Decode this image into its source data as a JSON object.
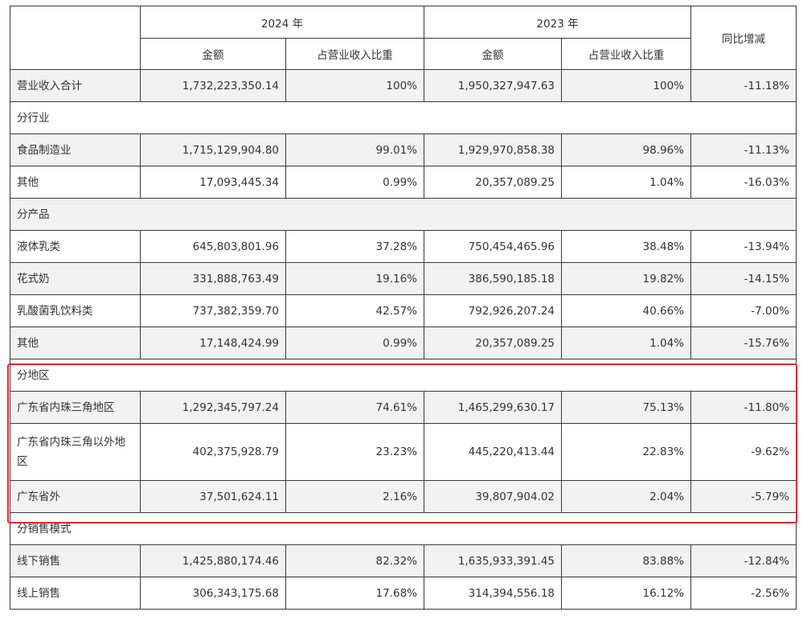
{
  "header": {
    "year_2024": "2024 年",
    "year_2023": "2023 年",
    "amount": "金额",
    "share": "占营业收入比重",
    "yoy": "同比增减"
  },
  "rows": {
    "total": {
      "label": "营业收入合计",
      "a2024": "1,732,223,350.14",
      "p2024": "100%",
      "a2023": "1,950,327,947.63",
      "p2023": "100%",
      "yoy": "-11.18%"
    },
    "sec_industry": {
      "label": "分行业"
    },
    "food": {
      "label": "食品制造业",
      "a2024": "1,715,129,904.80",
      "p2024": "99.01%",
      "a2023": "1,929,970,858.38",
      "p2023": "98.96%",
      "yoy": "-11.13%"
    },
    "other1": {
      "label": "其他",
      "a2024": "17,093,445.34",
      "p2024": "0.99%",
      "a2023": "20,357,089.25",
      "p2023": "1.04%",
      "yoy": "-16.03%"
    },
    "sec_product": {
      "label": "分产品"
    },
    "liquid": {
      "label": "液体乳类",
      "a2024": "645,803,801.96",
      "p2024": "37.28%",
      "a2023": "750,454,465.96",
      "p2023": "38.48%",
      "yoy": "-13.94%"
    },
    "fancy": {
      "label": "花式奶",
      "a2024": "331,888,763.49",
      "p2024": "19.16%",
      "a2023": "386,590,185.18",
      "p2023": "19.82%",
      "yoy": "-14.15%"
    },
    "lactic": {
      "label": "乳酸菌乳饮料类",
      "a2024": "737,382,359.70",
      "p2024": "42.57%",
      "a2023": "792,926,207.24",
      "p2023": "40.66%",
      "yoy": "-7.00%"
    },
    "other2": {
      "label": "其他",
      "a2024": "17,148,424.99",
      "p2024": "0.99%",
      "a2023": "20,357,089.25",
      "p2023": "1.04%",
      "yoy": "-15.76%"
    },
    "sec_region": {
      "label": "分地区"
    },
    "gd_prd": {
      "label": "广东省内珠三角地区",
      "a2024": "1,292,345,797.24",
      "p2024": "74.61%",
      "a2023": "1,465,299,630.17",
      "p2023": "75.13%",
      "yoy": "-11.80%"
    },
    "gd_nonprd": {
      "label": "广东省内珠三角以外地区",
      "a2024": "402,375,928.79",
      "p2024": "23.23%",
      "a2023": "445,220,413.44",
      "p2023": "22.83%",
      "yoy": "-9.62%"
    },
    "outside_gd": {
      "label": "广东省外",
      "a2024": "37,501,624.11",
      "p2024": "2.16%",
      "a2023": "39,807,904.02",
      "p2023": "2.04%",
      "yoy": "-5.79%"
    },
    "sec_channel": {
      "label": "分销售模式"
    },
    "offline": {
      "label": "线下销售",
      "a2024": "1,425,880,174.46",
      "p2024": "82.32%",
      "a2023": "1,635,933,391.45",
      "p2023": "83.88%",
      "yoy": "-12.84%"
    },
    "online": {
      "label": "线上销售",
      "a2024": "306,343,175.68",
      "p2024": "17.68%",
      "a2023": "314,394,556.18",
      "p2023": "16.12%",
      "yoy": "-2.56%"
    }
  },
  "colors": {
    "highlight_border": "#e02a2a",
    "shaded_row": "#f2f2f2",
    "grid": "#3a3a3a"
  }
}
